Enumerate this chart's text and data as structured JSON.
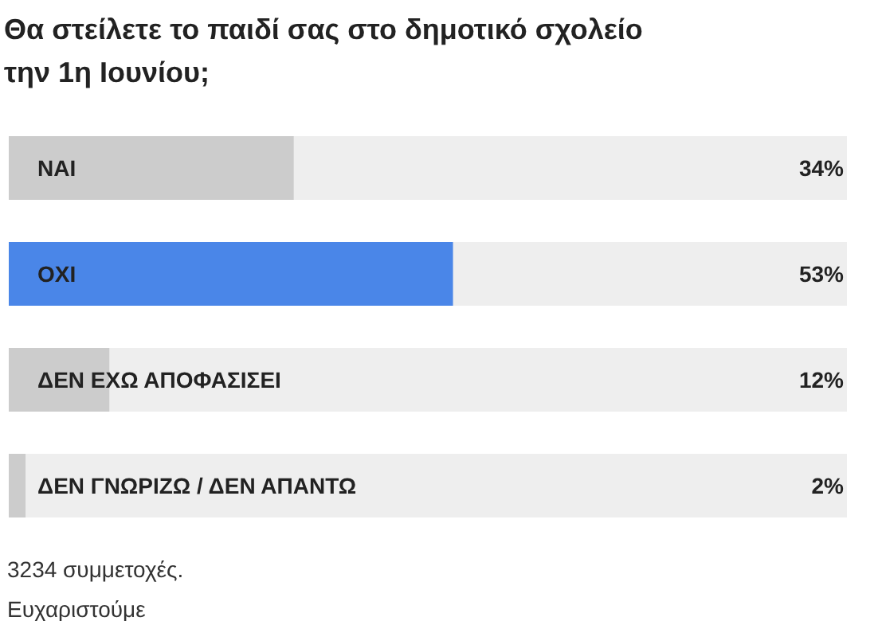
{
  "chart_data": {
    "type": "bar",
    "orientation": "horizontal",
    "title": "Θα στείλετε το παιδί σας στο δημοτικό σχολείο την 1η Ιουνίου;",
    "categories": [
      "ΝΑΙ",
      "ΟΧΙ",
      "ΔΕΝ ΕΧΩ ΑΠΟΦΑΣΙΣΕΙ",
      "ΔΕΝ ΓΝΩΡΙΖΩ / ΔΕΝ ΑΠΑΝΤΩ"
    ],
    "values": [
      34,
      53,
      12,
      2
    ],
    "colors": [
      "#cccccc",
      "#4a86e8",
      "#cccccc",
      "#cccccc"
    ],
    "value_labels": [
      "34%",
      "53%",
      "12%",
      "2%"
    ],
    "xlim": [
      0,
      100
    ],
    "annotations": [
      "3234 συμμετοχές.",
      "Ευχαριστούμε"
    ]
  }
}
